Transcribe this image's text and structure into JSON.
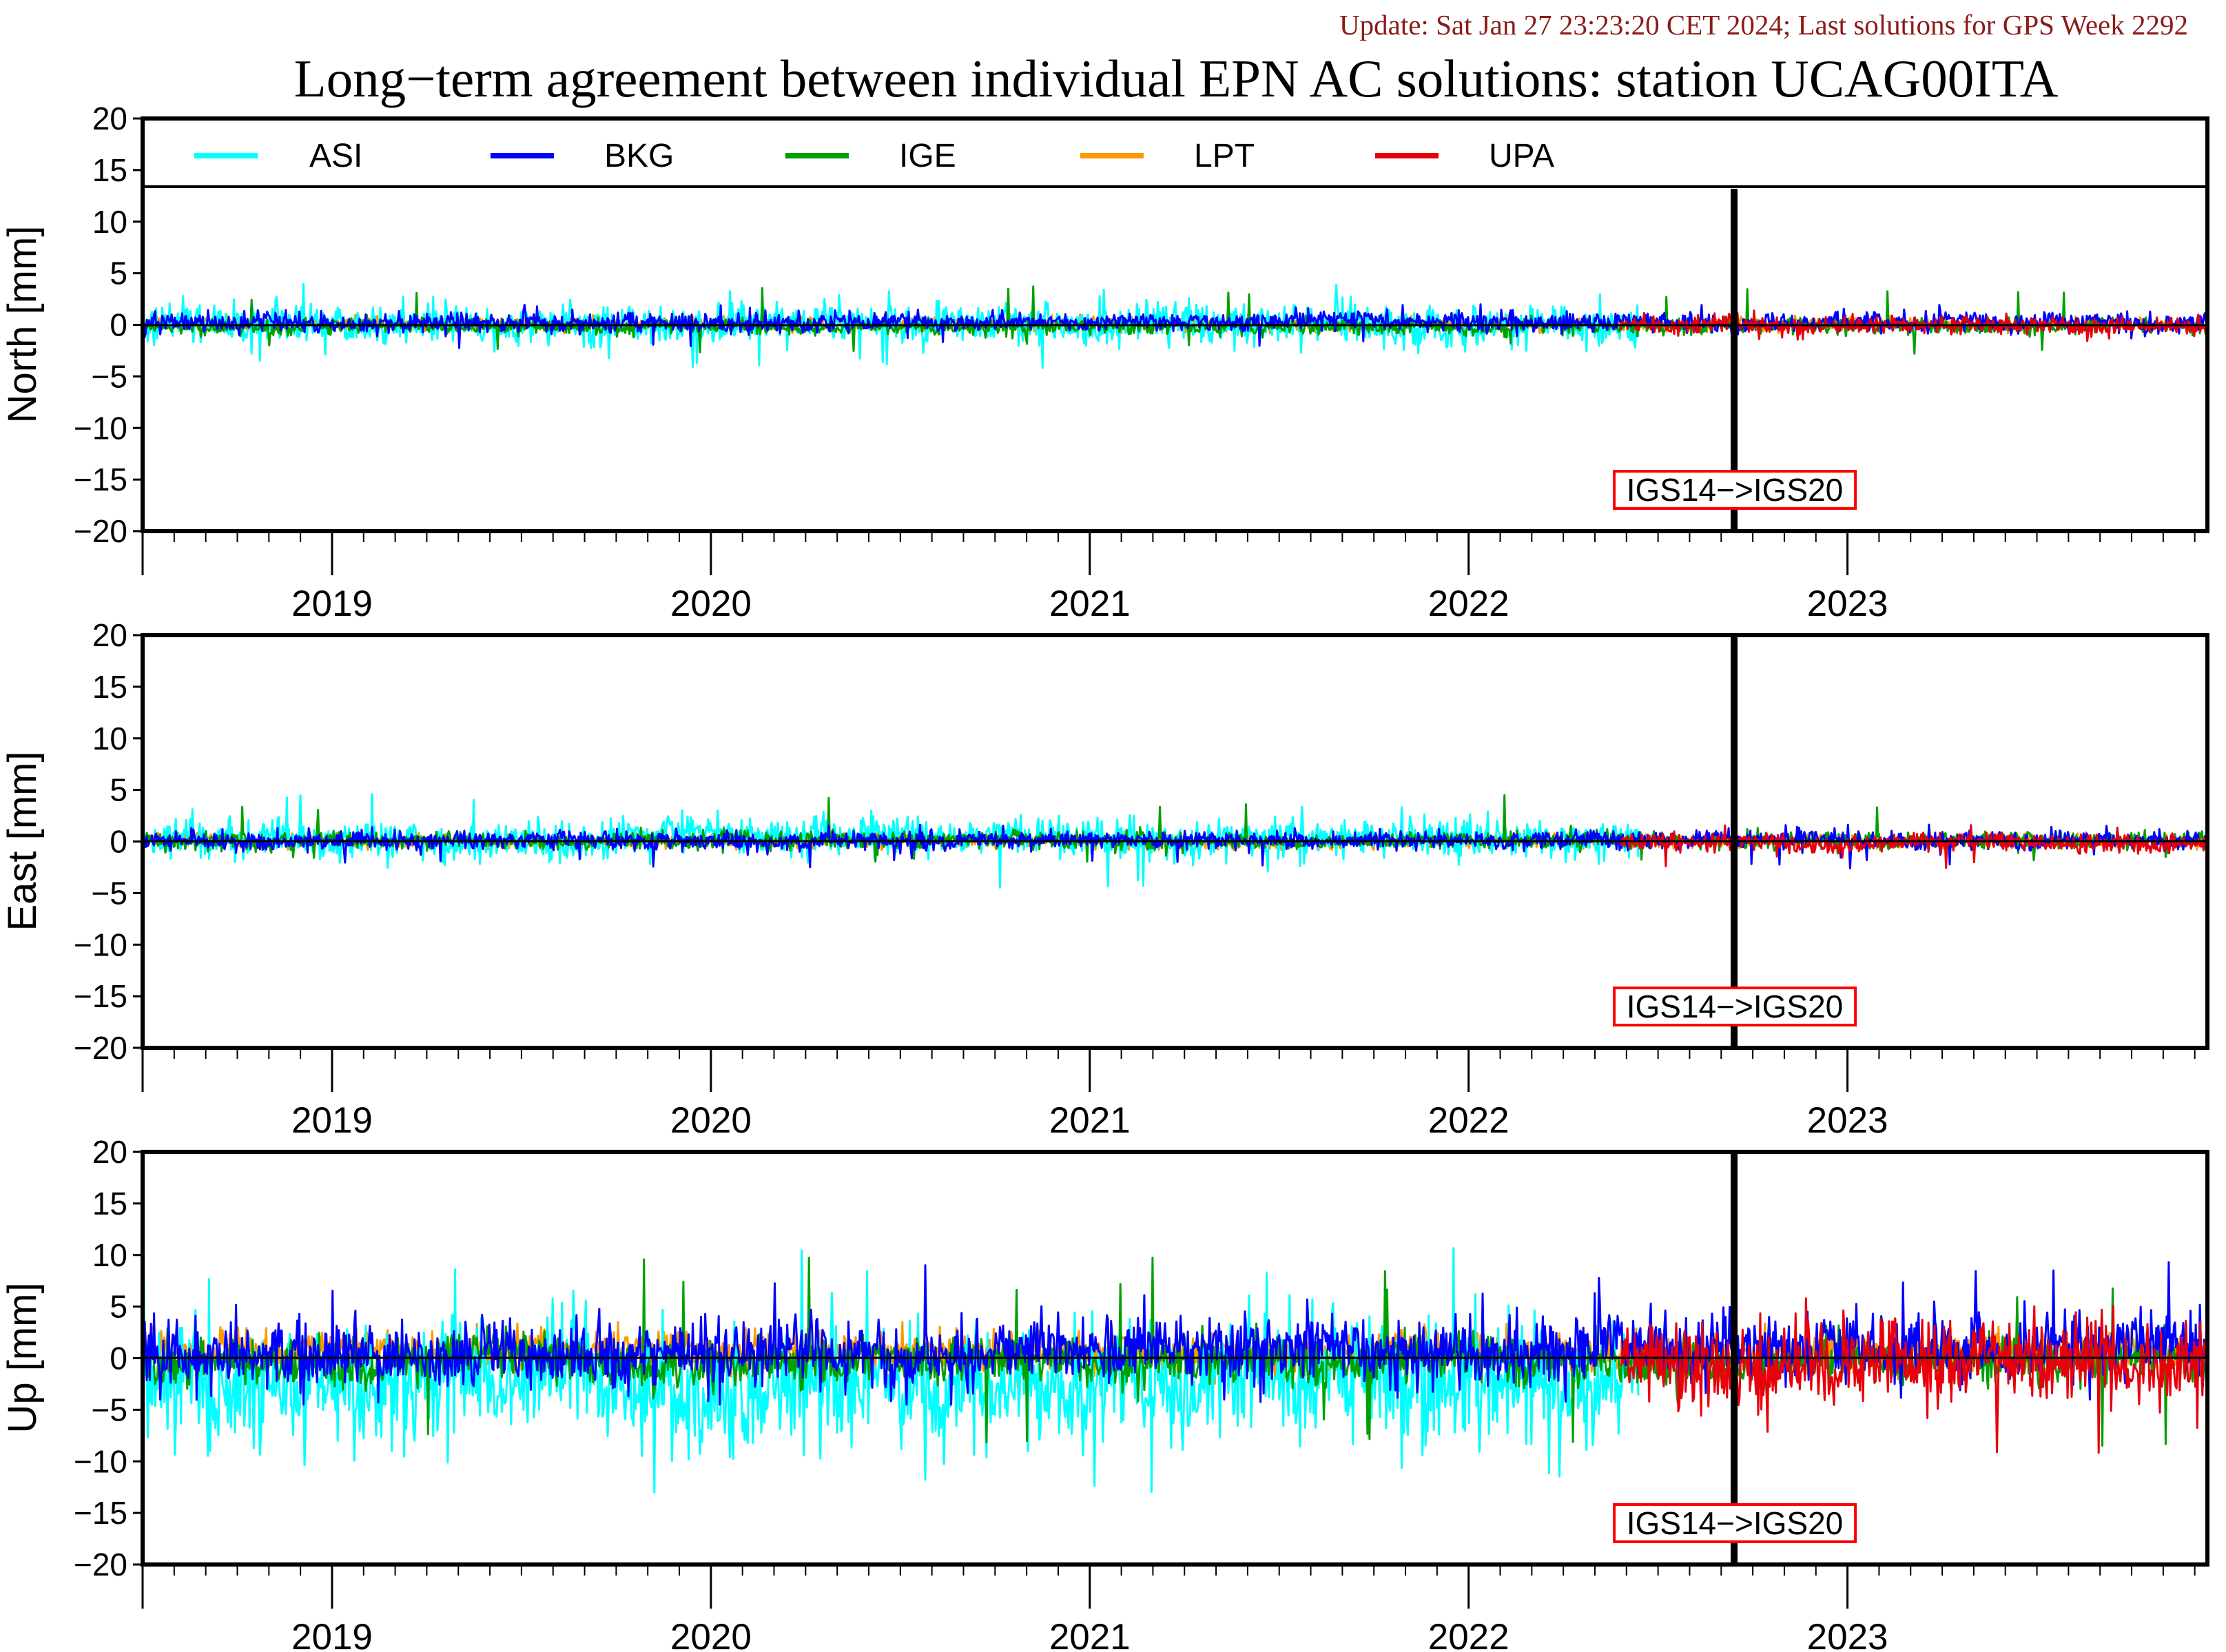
{
  "header": {
    "update": "Update: Sat Jan 27 23:23:20 CET 2024; Last solutions for GPS Week 2292"
  },
  "chart_data": {
    "type": "line",
    "title": "Long−term agreement between individual EPN AC solutions: station UCAG00ITA",
    "x_range": [
      2018.5,
      2023.95
    ],
    "x_tick_labels": [
      "2019",
      "2020",
      "2021",
      "2022",
      "2023"
    ],
    "y_ticks": [
      20,
      15,
      10,
      5,
      0,
      -5,
      -10,
      -15,
      -20
    ],
    "y_tick_labels": [
      "20",
      "15",
      "10",
      "5",
      "0",
      "−5",
      "−10",
      "−15",
      "−20"
    ],
    "colors": {
      "ASI": "#00ffff",
      "BKG": "#0000ff",
      "IGE": "#00a000",
      "LPT": "#ff9900",
      "UPA": "#e8000b",
      "annotation_box": "#ff0000"
    },
    "legend": {
      "placement": "top",
      "entries": [
        "ASI",
        "BKG",
        "IGE",
        "LPT",
        "UPA"
      ]
    },
    "discontinuity": {
      "x": 2022.4,
      "label": "IGS14−>IGS20"
    },
    "series_periods": {
      "ASI": [
        2018.5,
        2022.45
      ],
      "BKG": [
        2018.5,
        2023.95
      ],
      "IGE": [
        2018.5,
        2023.95
      ],
      "LPT": [
        2018.5,
        2023.95
      ],
      "UPA": [
        2022.4,
        2023.95
      ]
    },
    "panels": [
      {
        "ylabel": "North [mm]",
        "ylim": [
          -20,
          20
        ],
        "has_legend": true,
        "series": [
          {
            "name": "ASI",
            "mean": 0.1,
            "sd": 0.95,
            "min": -4.2,
            "max": 4.1
          },
          {
            "name": "BKG",
            "mean": 0.25,
            "sd": 0.45,
            "min": -2.3,
            "max": 2.0
          },
          {
            "name": "IGE",
            "mean": -0.2,
            "sd": 0.35,
            "min": -2.8,
            "max": 3.8
          },
          {
            "name": "LPT",
            "mean": 0.1,
            "sd": 0.3,
            "min": -0.8,
            "max": 1.0
          },
          {
            "name": "UPA",
            "mean": -0.1,
            "sd": 0.4,
            "min": -1.9,
            "max": 1.5
          }
        ]
      },
      {
        "ylabel": "East [mm]",
        "ylim": [
          -20,
          20
        ],
        "has_legend": false,
        "series": [
          {
            "name": "ASI",
            "mean": 0.4,
            "sd": 0.9,
            "min": -4.8,
            "max": 4.9
          },
          {
            "name": "BKG",
            "mean": 0.1,
            "sd": 0.45,
            "min": -2.6,
            "max": 1.8
          },
          {
            "name": "IGE",
            "mean": 0.1,
            "sd": 0.4,
            "min": -2.0,
            "max": 4.7
          },
          {
            "name": "LPT",
            "mean": 0.0,
            "sd": 0.3,
            "min": -0.8,
            "max": 0.9
          },
          {
            "name": "UPA",
            "mean": -0.1,
            "sd": 0.45,
            "min": -3.2,
            "max": 1.6
          }
        ]
      },
      {
        "ylabel": "Up [mm]",
        "ylim": [
          -20,
          20
        ],
        "has_legend": false,
        "series": [
          {
            "name": "ASI",
            "mean": -2.5,
            "sd": 2.8,
            "min": -13.0,
            "max": 11.0
          },
          {
            "name": "BKG",
            "mean": 0.8,
            "sd": 1.6,
            "min": -4.5,
            "max": 9.5
          },
          {
            "name": "IGE",
            "mean": -0.3,
            "sd": 1.1,
            "min": -8.5,
            "max": 9.8
          },
          {
            "name": "LPT",
            "mean": 0.7,
            "sd": 0.9,
            "min": -3.0,
            "max": 3.5
          },
          {
            "name": "UPA",
            "mean": -0.5,
            "sd": 2.0,
            "min": -9.8,
            "max": 5.8
          }
        ]
      }
    ]
  }
}
